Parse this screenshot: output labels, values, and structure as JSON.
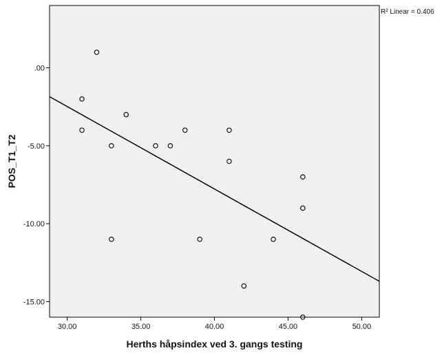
{
  "chart_data": {
    "type": "scatter",
    "xlabel": "Herths håpsindex ved 3. gangs testing",
    "ylabel": "POS_T1_T2",
    "xlim": [
      28.8,
      51.2
    ],
    "ylim": [
      -16.0,
      4.0
    ],
    "x_ticks": [
      30,
      35,
      40,
      45,
      50
    ],
    "x_tick_labels": [
      "30.00",
      "35.00",
      "40.00",
      "45.00",
      "50.00"
    ],
    "y_ticks": [
      0,
      -5,
      -10,
      -15
    ],
    "y_tick_labels": [
      ".00",
      "-5.00",
      "-10.00",
      "-15.00"
    ],
    "points": [
      {
        "x": 32,
        "y": 1
      },
      {
        "x": 31,
        "y": -2
      },
      {
        "x": 31,
        "y": -4
      },
      {
        "x": 34,
        "y": -3
      },
      {
        "x": 33,
        "y": -5
      },
      {
        "x": 36,
        "y": -5
      },
      {
        "x": 37,
        "y": -5
      },
      {
        "x": 38,
        "y": -4
      },
      {
        "x": 41,
        "y": -4
      },
      {
        "x": 41,
        "y": -6
      },
      {
        "x": 33,
        "y": -11
      },
      {
        "x": 39,
        "y": -11
      },
      {
        "x": 44,
        "y": -11
      },
      {
        "x": 42,
        "y": -14
      },
      {
        "x": 46,
        "y": -7
      },
      {
        "x": 46,
        "y": -9
      },
      {
        "x": 46,
        "y": -16
      }
    ],
    "fit_line": {
      "type": "linear",
      "x": [
        28.8,
        51.2
      ],
      "y": [
        -1.85,
        -13.7
      ]
    },
    "r2_label": "R² Linear = 0.406",
    "grid": false,
    "colors": {
      "background": "#f0f0f0",
      "marker_edge": "#000000",
      "line": "#000000"
    }
  }
}
